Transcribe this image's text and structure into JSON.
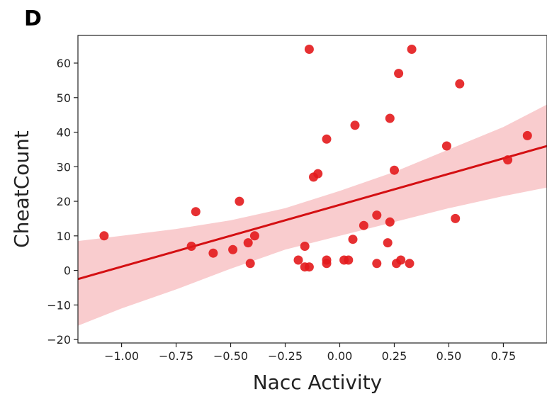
{
  "panel_label": "D",
  "chart_data": {
    "type": "scatter",
    "title": "",
    "xlabel": "Nacc Activity",
    "ylabel": "CheatCount",
    "xlim": [
      -1.2,
      0.95
    ],
    "ylim": [
      -21,
      68
    ],
    "grid": false,
    "legend": "none",
    "x_ticks": [
      -1.0,
      -0.75,
      -0.5,
      -0.25,
      0.0,
      0.25,
      0.5,
      0.75
    ],
    "x_tick_labels": [
      "−1.00",
      "−0.75",
      "−0.50",
      "−0.25",
      "0.00",
      "0.25",
      "0.50",
      "0.75"
    ],
    "y_ticks": [
      -20,
      -10,
      0,
      10,
      20,
      30,
      40,
      50,
      60
    ],
    "y_tick_labels": [
      "−20",
      "−10",
      "0",
      "10",
      "20",
      "30",
      "40",
      "50",
      "60"
    ],
    "colors": {
      "points": "#e31a1c",
      "regression_line": "#d40f12",
      "confidence_band": "#f8c3c6"
    },
    "points": [
      {
        "x": -1.08,
        "y": 10
      },
      {
        "x": -0.68,
        "y": 7
      },
      {
        "x": -0.66,
        "y": 17
      },
      {
        "x": -0.58,
        "y": 5
      },
      {
        "x": -0.49,
        "y": 6
      },
      {
        "x": -0.46,
        "y": 20
      },
      {
        "x": -0.42,
        "y": 8
      },
      {
        "x": -0.41,
        "y": 2
      },
      {
        "x": -0.39,
        "y": 10
      },
      {
        "x": -0.19,
        "y": 3
      },
      {
        "x": -0.16,
        "y": 7
      },
      {
        "x": -0.16,
        "y": 1
      },
      {
        "x": -0.14,
        "y": 1
      },
      {
        "x": -0.14,
        "y": 64
      },
      {
        "x": -0.12,
        "y": 27
      },
      {
        "x": -0.1,
        "y": 28
      },
      {
        "x": -0.06,
        "y": 3
      },
      {
        "x": -0.06,
        "y": 2
      },
      {
        "x": -0.06,
        "y": 38
      },
      {
        "x": 0.02,
        "y": 3
      },
      {
        "x": 0.04,
        "y": 3
      },
      {
        "x": 0.06,
        "y": 9
      },
      {
        "x": 0.07,
        "y": 42
      },
      {
        "x": 0.11,
        "y": 13
      },
      {
        "x": 0.17,
        "y": 16
      },
      {
        "x": 0.17,
        "y": 2
      },
      {
        "x": 0.22,
        "y": 8
      },
      {
        "x": 0.23,
        "y": 14
      },
      {
        "x": 0.23,
        "y": 44
      },
      {
        "x": 0.25,
        "y": 29
      },
      {
        "x": 0.26,
        "y": 2
      },
      {
        "x": 0.27,
        "y": 57
      },
      {
        "x": 0.28,
        "y": 3
      },
      {
        "x": 0.32,
        "y": 2
      },
      {
        "x": 0.33,
        "y": 64
      },
      {
        "x": 0.49,
        "y": 36
      },
      {
        "x": 0.53,
        "y": 15
      },
      {
        "x": 0.55,
        "y": 54
      },
      {
        "x": 0.77,
        "y": 32
      },
      {
        "x": 0.86,
        "y": 39
      }
    ],
    "regression_line": {
      "x": [
        -1.2,
        0.95
      ],
      "y": [
        -2.5,
        36.0
      ]
    },
    "confidence_band": {
      "x": [
        -1.2,
        -1.0,
        -0.75,
        -0.5,
        -0.25,
        0.0,
        0.25,
        0.5,
        0.75,
        0.95
      ],
      "lower": [
        -16.0,
        -11.0,
        -5.5,
        0.5,
        6.0,
        10.0,
        14.0,
        18.0,
        21.5,
        24.0
      ],
      "upper": [
        8.5,
        10.0,
        12.0,
        14.5,
        18.0,
        23.0,
        28.5,
        35.0,
        41.5,
        48.0
      ]
    }
  }
}
